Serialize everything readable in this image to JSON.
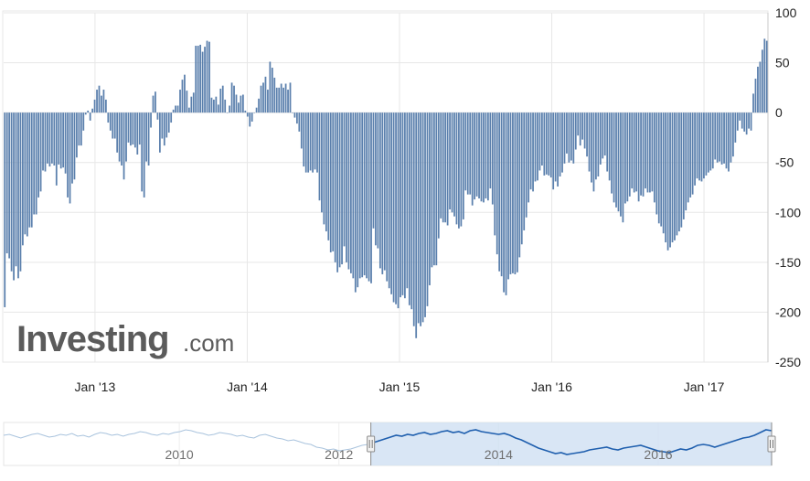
{
  "logo": {
    "main": "Investing",
    "sub": ".com"
  },
  "colors": {
    "bar": "#5b80ad",
    "grid": "#e7e7e7",
    "navigator_line": "#1f5fae",
    "navigator_fill": "#cfe0f3",
    "navigator_faded_line": "#a9c3dd"
  },
  "chart_data": {
    "type": "bar",
    "title": "",
    "xlabel": "",
    "ylabel": "",
    "ylim": [
      -250,
      100
    ],
    "yticks": [
      100,
      50,
      0,
      -50,
      -100,
      -150,
      -200,
      -250
    ],
    "y_tick_labels": [
      "100",
      "50",
      "0",
      "-50",
      "-100",
      "-150",
      "-200",
      "-250"
    ],
    "x_tick_labels": [
      "Jan '13",
      "Jan '14",
      "Jan '15",
      "Jan '16",
      "Jan '17"
    ],
    "x_tick_positions": [
      2013.0,
      2014.0,
      2015.0,
      2016.0,
      2017.0
    ],
    "x_start": 2012.4,
    "x_end": 2017.42,
    "grid": true,
    "series": [
      {
        "values": [
          -195,
          -141,
          -146,
          -159,
          -168,
          -154,
          -166,
          -159,
          -133,
          -122,
          -124,
          -115,
          -115,
          -102,
          -102,
          -85,
          -79,
          -58,
          -59,
          -51,
          -54,
          -51,
          -53,
          -73,
          -52,
          -56,
          -55,
          -61,
          -85,
          -91,
          -71,
          -67,
          -45,
          -33,
          -33,
          -18,
          -2,
          2,
          -8,
          4,
          13,
          23,
          27,
          17,
          23,
          13,
          -10,
          -18,
          -26,
          -26,
          -40,
          -49,
          -53,
          -67,
          -49,
          -30,
          -33,
          -32,
          -35,
          -42,
          -32,
          -79,
          -85,
          -49,
          -53,
          -15,
          17,
          21,
          -7,
          -40,
          -26,
          -33,
          -25,
          -20,
          -10,
          3,
          7,
          7,
          23,
          33,
          38,
          22,
          5,
          16,
          20,
          67,
          67,
          68,
          61,
          66,
          72,
          71,
          15,
          13,
          16,
          8,
          24,
          27,
          13,
          0,
          7,
          30,
          27,
          18,
          10,
          17,
          18,
          2,
          -4,
          -14,
          -9,
          0,
          5,
          14,
          27,
          30,
          36,
          23,
          51,
          45,
          35,
          25,
          25,
          29,
          25,
          29,
          23,
          30,
          0,
          -5,
          -11,
          -19,
          -36,
          -54,
          -60,
          -60,
          -58,
          -60,
          -57,
          -60,
          -88,
          -100,
          -112,
          -119,
          -128,
          -140,
          -139,
          -150,
          -160,
          -155,
          -152,
          -134,
          -150,
          -157,
          -161,
          -166,
          -180,
          -175,
          -166,
          -165,
          -163,
          -166,
          -169,
          -171,
          -116,
          -133,
          -136,
          -156,
          -162,
          -158,
          -169,
          -176,
          -182,
          -190,
          -192,
          -196,
          -185,
          -183,
          -186,
          -176,
          -193,
          -197,
          -214,
          -226,
          -211,
          -214,
          -210,
          -205,
          -194,
          -173,
          -155,
          -153,
          -153,
          -126,
          -106,
          -110,
          -110,
          -113,
          -97,
          -100,
          -104,
          -112,
          -116,
          -114,
          -107,
          -78,
          -82,
          -82,
          -93,
          -87,
          -84,
          -86,
          -89,
          -90,
          -86,
          -88,
          -76,
          -92,
          -123,
          -142,
          -159,
          -164,
          -180,
          -183,
          -167,
          -162,
          -161,
          -162,
          -160,
          -145,
          -132,
          -118,
          -105,
          -90,
          -77,
          -79,
          -69,
          -68,
          -58,
          -53,
          -63,
          -62,
          -63,
          -65,
          -77,
          -69,
          -74,
          -64,
          -60,
          -51,
          -41,
          -50,
          -48,
          -51,
          -37,
          -23,
          -33,
          -27,
          -36,
          -44,
          -59,
          -70,
          -79,
          -67,
          -64,
          -52,
          -46,
          -43,
          -59,
          -68,
          -81,
          -90,
          -95,
          -99,
          -104,
          -110,
          -91,
          -89,
          -84,
          -76,
          -80,
          -79,
          -89,
          -83,
          -84,
          -76,
          -80,
          -80,
          -79,
          -90,
          -102,
          -111,
          -114,
          -121,
          -130,
          -138,
          -135,
          -130,
          -128,
          -123,
          -119,
          -115,
          -107,
          -98,
          -90,
          -85,
          -82,
          -73,
          -66,
          -68,
          -69,
          -66,
          -63,
          -60,
          -58,
          -56,
          -47,
          -50,
          -49,
          -52,
          -51,
          -56,
          -59,
          -50,
          -44,
          -30,
          -18,
          -8,
          -16,
          -19,
          -22,
          -16,
          -18,
          19,
          34,
          46,
          51,
          63,
          74,
          72
        ]
      }
    ]
  },
  "navigator": {
    "year_labels": [
      "2010",
      "2012",
      "2014",
      "2016"
    ],
    "year_positions": [
      2010.0,
      2012.0,
      2014.0,
      2016.0
    ],
    "x_start": 2007.8,
    "x_end": 2017.42,
    "selection_start": 2012.4,
    "selection_end": 2017.42,
    "values": [
      8,
      9,
      7,
      5,
      7,
      9,
      10,
      8,
      6,
      7,
      9,
      8,
      10,
      7,
      8,
      6,
      9,
      11,
      10,
      8,
      9,
      7,
      9,
      10,
      12,
      11,
      9,
      8,
      10,
      9,
      11,
      12,
      14,
      13,
      11,
      10,
      8,
      9,
      11,
      10,
      9,
      7,
      8,
      6,
      5,
      8,
      9,
      7,
      5,
      4,
      2,
      3,
      1,
      -1,
      -2,
      -5,
      -6,
      -8,
      -7,
      -9,
      -8,
      -7,
      -5,
      -3,
      -2,
      0,
      2,
      4,
      6,
      8,
      7,
      9,
      8,
      10,
      11,
      9,
      10,
      12,
      13,
      11,
      12,
      10,
      13,
      14,
      12,
      11,
      10,
      9,
      10,
      8,
      5,
      3,
      0,
      -3,
      -6,
      -8,
      -10,
      -12,
      -11,
      -13,
      -12,
      -11,
      -10,
      -8,
      -7,
      -6,
      -5,
      -7,
      -8,
      -6,
      -5,
      -4,
      -3,
      -5,
      -7,
      -9,
      -10,
      -11,
      -9,
      -7,
      -8,
      -6,
      -3,
      -2,
      -3,
      -5,
      -3,
      -1,
      1,
      3,
      5,
      6,
      8,
      11,
      14,
      13
    ]
  }
}
